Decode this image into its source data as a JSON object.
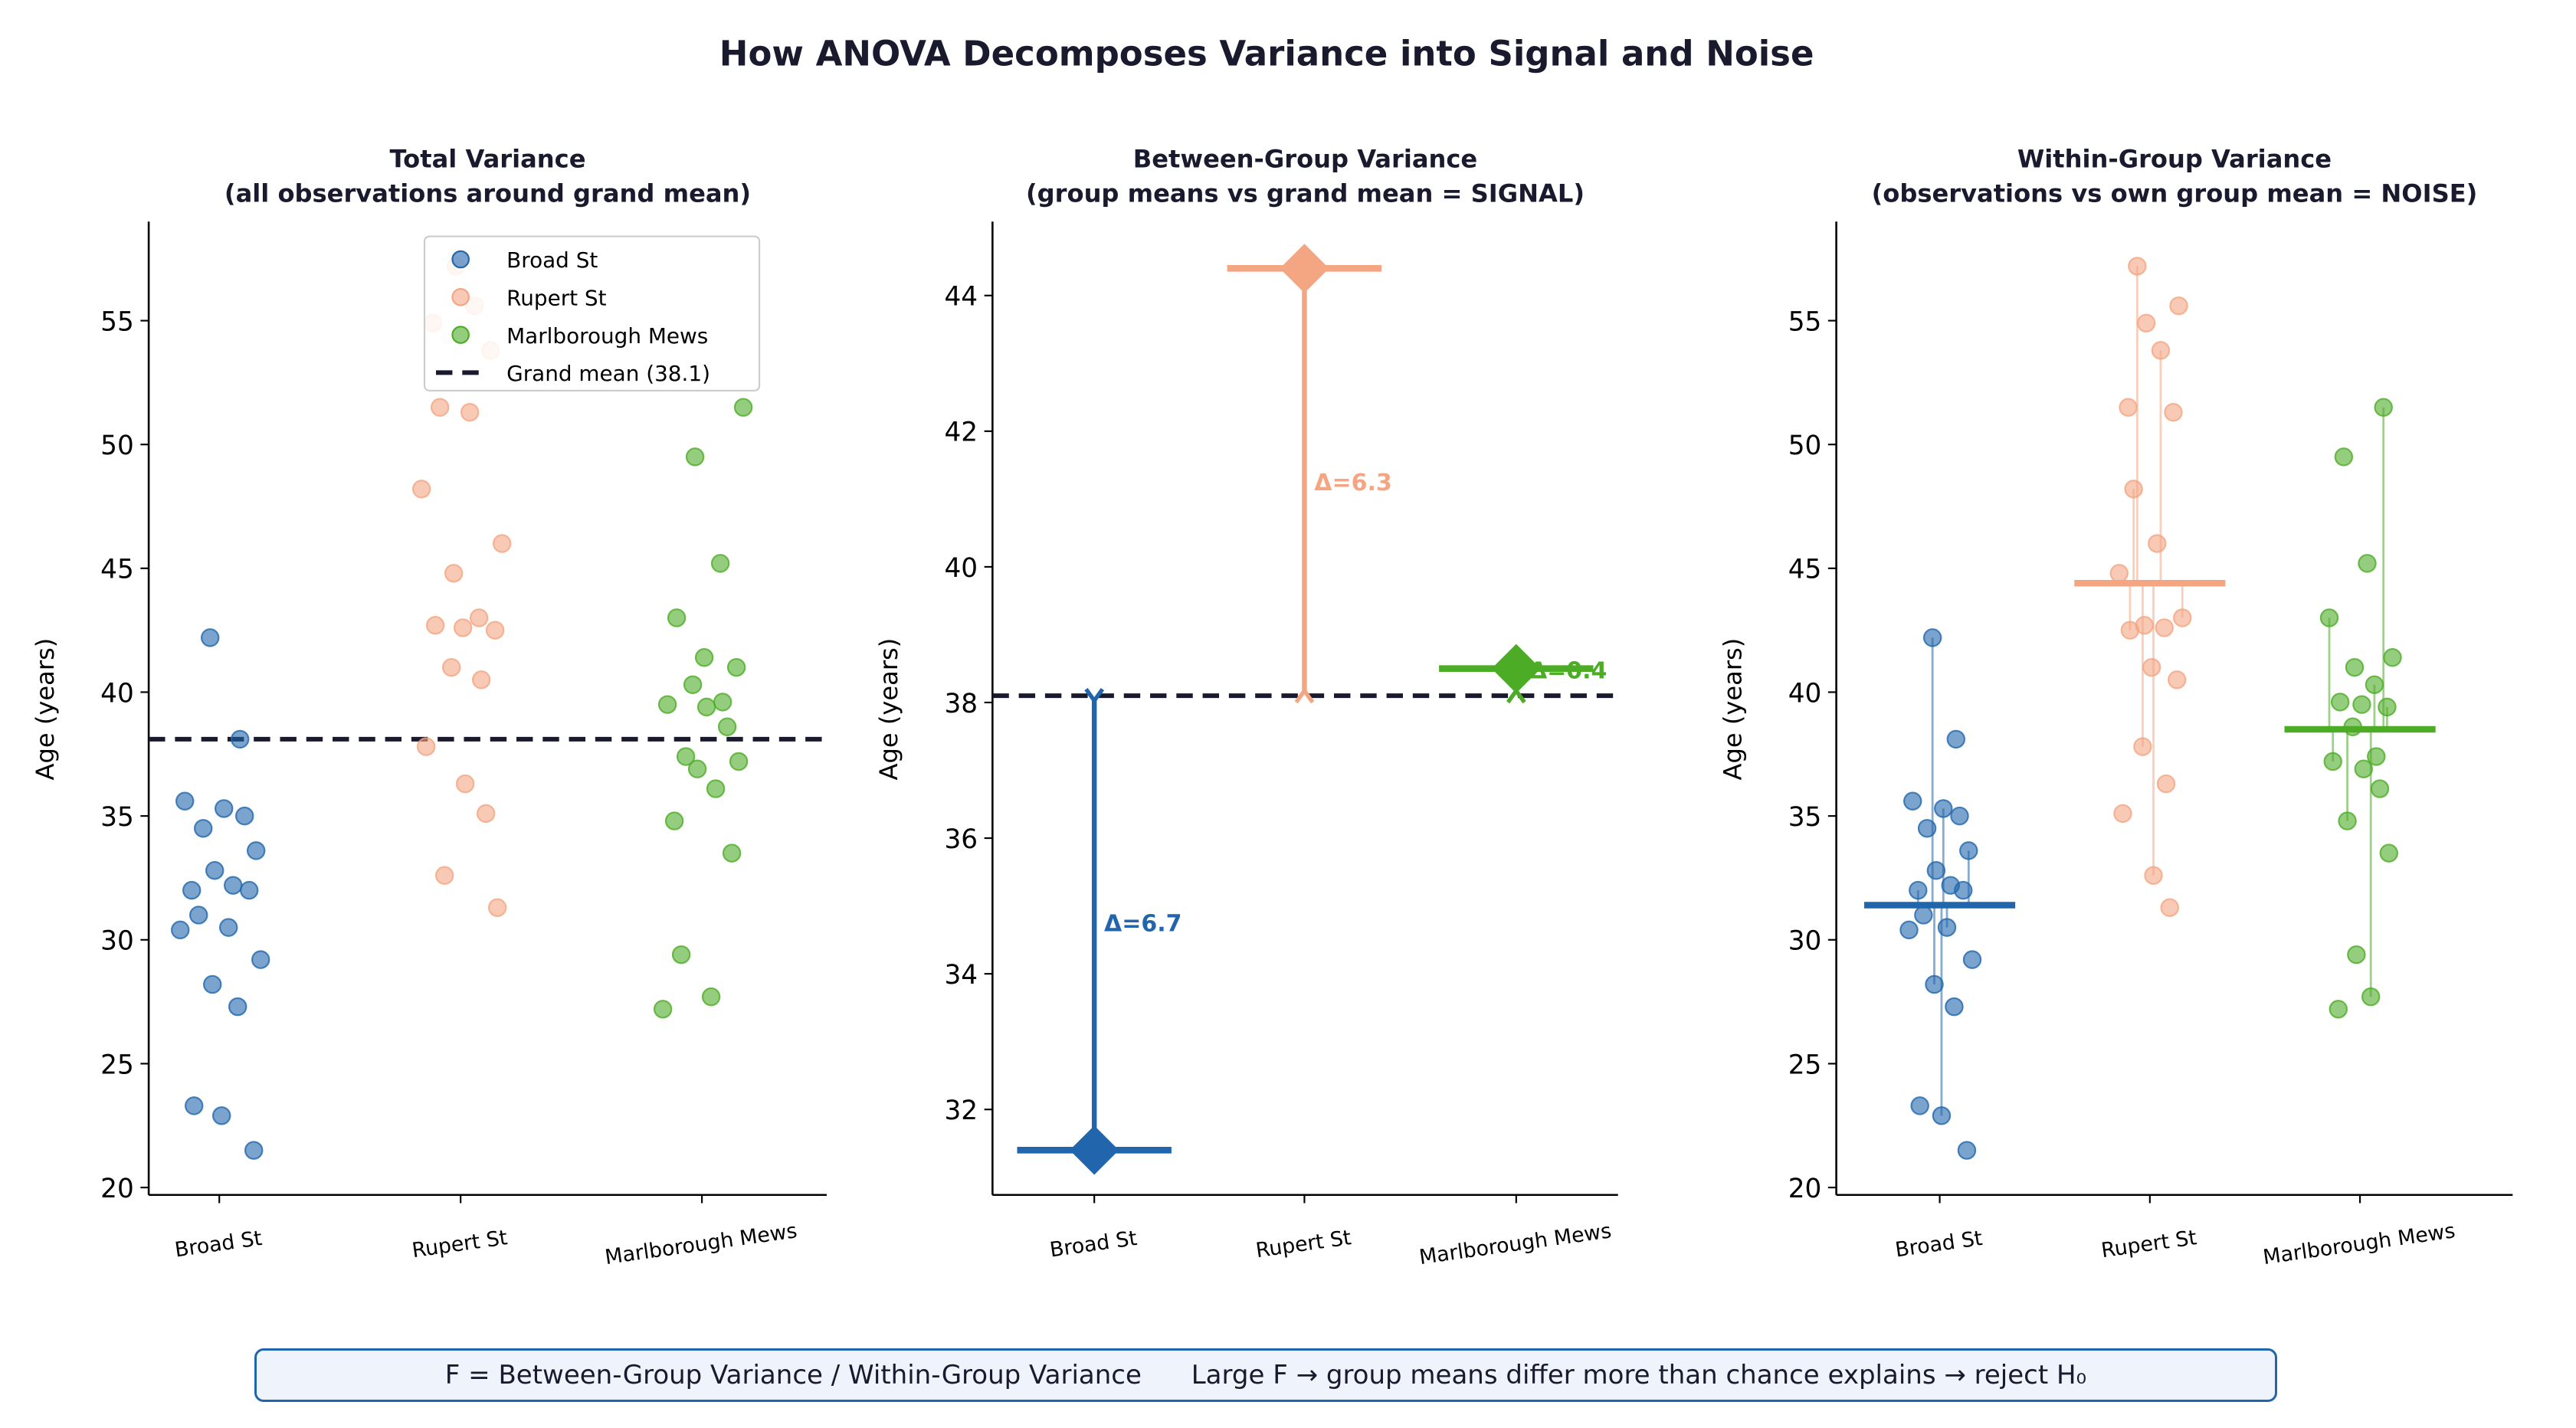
{
  "title": "How ANOVA Decomposes Variance into Signal and Noise",
  "footer": "F = Between-Group Variance / Within-Group Variance      Large F → group means differ more than chance explains → reject H₀",
  "chart_data": {
    "type": "scatter",
    "categories": [
      "Broad St",
      "Rupert St",
      "Marlborough Mews"
    ],
    "ylabel": "Age (years)",
    "grand_mean": 38.1,
    "grand_mean_label": "Grand mean (38.1)",
    "colors": {
      "Broad St": "#2166ac",
      "Rupert St": "#f4a582",
      "Marlborough Mews": "#4dac26",
      "grand_mean": "#1a1a2e"
    },
    "series": [
      {
        "name": "Broad St",
        "mean": 31.4,
        "delta_label": "Δ=6.7",
        "values": [
          42.2,
          38.1,
          35.6,
          35.3,
          35.0,
          34.5,
          33.6,
          32.8,
          32.2,
          32.0,
          32.0,
          31.0,
          30.5,
          30.4,
          29.2,
          28.2,
          27.3,
          23.3,
          22.9,
          21.5
        ]
      },
      {
        "name": "Rupert St",
        "mean": 44.4,
        "delta_label": "Δ=6.3",
        "values": [
          57.2,
          55.6,
          54.9,
          53.8,
          51.5,
          51.3,
          48.2,
          46.0,
          44.8,
          43.0,
          42.7,
          42.6,
          42.5,
          41.0,
          40.5,
          37.8,
          36.3,
          35.1,
          32.6,
          31.3
        ]
      },
      {
        "name": "Marlborough Mews",
        "mean": 38.5,
        "delta_label": "Δ=0.4",
        "values": [
          51.5,
          49.5,
          45.2,
          43.0,
          41.4,
          41.0,
          40.3,
          39.6,
          39.5,
          39.4,
          38.6,
          37.4,
          37.2,
          36.9,
          36.1,
          34.8,
          33.5,
          29.4,
          27.7,
          27.2
        ]
      }
    ],
    "panels": [
      {
        "id": "total",
        "title": [
          "Total Variance",
          "(all observations around grand mean)"
        ],
        "ylim": [
          19.7,
          59.0
        ],
        "yticks": [
          20,
          25,
          30,
          35,
          40,
          45,
          50,
          55
        ],
        "legend": "top-right"
      },
      {
        "id": "between",
        "title": [
          "Between-Group Variance",
          "(group means vs grand mean = SIGNAL)"
        ],
        "ylim": [
          30.74,
          45.09
        ],
        "yticks": [
          32,
          34,
          36,
          38,
          40,
          42,
          44
        ]
      },
      {
        "id": "within",
        "title": [
          "Within-Group Variance",
          "(observations vs own group mean = NOISE)"
        ],
        "ylim": [
          19.7,
          59.0
        ],
        "yticks": [
          20,
          25,
          30,
          35,
          40,
          45,
          50,
          55
        ]
      }
    ]
  }
}
